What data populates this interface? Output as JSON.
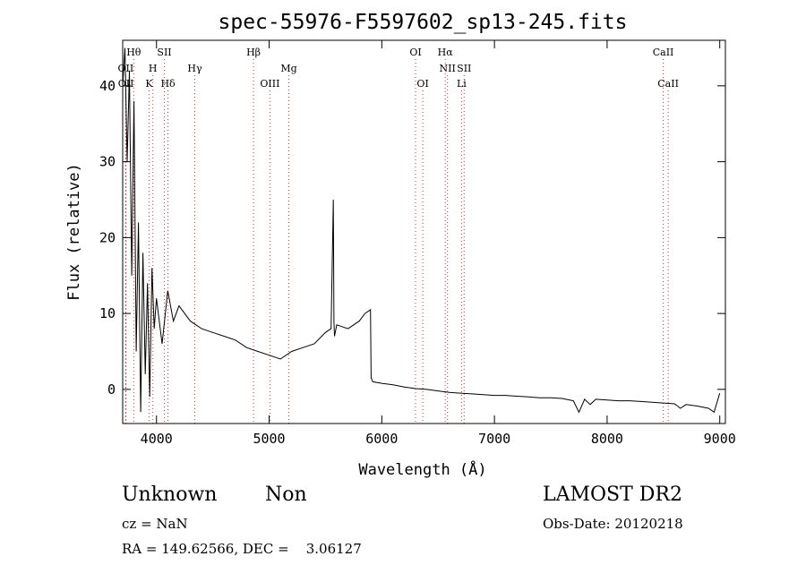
{
  "chart_data": {
    "type": "line",
    "title": "spec-55976-F5597602_sp13-245.fits",
    "xlabel": "Wavelength (Å)",
    "ylabel": "Flux (relative)",
    "xlim": [
      3700,
      9050
    ],
    "ylim": [
      -4.5,
      46
    ],
    "x_ticks": [
      4000,
      5000,
      6000,
      7000,
      8000,
      9000
    ],
    "y_ticks": [
      0,
      10,
      20,
      30,
      40
    ],
    "x_tick_labels": [
      "4000",
      "5000",
      "6000",
      "7000",
      "8000",
      "9000"
    ],
    "y_tick_labels": [
      "0",
      "10",
      "20",
      "30",
      "40"
    ],
    "x": [
      3700,
      3720,
      3740,
      3760,
      3780,
      3800,
      3820,
      3840,
      3860,
      3880,
      3900,
      3920,
      3940,
      3960,
      3980,
      4000,
      4050,
      4100,
      4150,
      4200,
      4300,
      4400,
      4500,
      4600,
      4700,
      4800,
      4900,
      5000,
      5100,
      5200,
      5300,
      5400,
      5500,
      5550,
      5570,
      5575,
      5580,
      5600,
      5700,
      5800,
      5850,
      5900,
      5905,
      5920,
      6000,
      6100,
      6200,
      6300,
      6400,
      6500,
      6600,
      6700,
      6800,
      6900,
      7000,
      7100,
      7200,
      7300,
      7400,
      7500,
      7600,
      7700,
      7750,
      7800,
      7850,
      7900,
      8000,
      8100,
      8200,
      8300,
      8400,
      8500,
      8600,
      8650,
      8700,
      8800,
      8900,
      8950,
      9000
    ],
    "y": [
      40,
      45,
      30,
      42,
      15,
      38,
      5,
      22,
      -3,
      18,
      2,
      14,
      -1,
      16,
      8,
      12,
      6,
      13,
      9,
      11,
      9,
      8,
      7.5,
      7,
      6.5,
      5.5,
      5,
      4.5,
      4,
      5,
      5.5,
      6,
      7.5,
      8,
      25,
      9,
      7,
      8.5,
      8,
      9,
      10,
      10.5,
      1.5,
      1,
      0.8,
      0.6,
      0.3,
      0.1,
      0,
      -0.2,
      -0.4,
      -0.5,
      -0.6,
      -0.7,
      -0.8,
      -0.8,
      -0.9,
      -1,
      -1.1,
      -1.1,
      -1.2,
      -1.5,
      -3,
      -1.3,
      -2,
      -1.3,
      -1.4,
      -1.5,
      -1.5,
      -1.6,
      -1.7,
      -1.8,
      -1.9,
      -2.5,
      -2,
      -2.2,
      -2.5,
      -3,
      -0.5
    ],
    "lines": [
      {
        "label": "Hθ",
        "wave": 3798,
        "row": 0
      },
      {
        "label": "OII",
        "wave": 3727,
        "row": 1
      },
      {
        "label": "OII",
        "wave": 3729,
        "row": 2
      },
      {
        "label": "SII",
        "wave": 4070,
        "row": 0
      },
      {
        "label": "H",
        "wave": 3968,
        "row": 1
      },
      {
        "label": "K",
        "wave": 3934,
        "row": 2
      },
      {
        "label": "Hδ",
        "wave": 4102,
        "row": 2
      },
      {
        "label": "Hγ",
        "wave": 4340,
        "row": 1
      },
      {
        "label": "Hβ",
        "wave": 4861,
        "row": 0
      },
      {
        "label": "OIII",
        "wave": 5007,
        "row": 2
      },
      {
        "label": "Mg",
        "wave": 5175,
        "row": 1
      },
      {
        "label": "OI",
        "wave": 6300,
        "row": 0
      },
      {
        "label": "OI",
        "wave": 6364,
        "row": 2
      },
      {
        "label": "Hα",
        "wave": 6563,
        "row": 0
      },
      {
        "label": "NII",
        "wave": 6583,
        "row": 1
      },
      {
        "label": "Li",
        "wave": 6708,
        "row": 2
      },
      {
        "label": "SII",
        "wave": 6731,
        "row": 1
      },
      {
        "label": "CaII",
        "wave": 8498,
        "row": 0
      },
      {
        "label": "CaII",
        "wave": 8542,
        "row": 2
      }
    ]
  },
  "info": {
    "class_label": "Unknown",
    "subclass_label": "Non",
    "survey": "LAMOST DR2",
    "redshift": "cz = NaN",
    "obs_date": "Obs-Date: 20120218",
    "coords": "RA = 149.62566, DEC =    3.06127"
  },
  "colors": {
    "spectrum": "#000000",
    "line_markers": "#cc3333",
    "background": "#ffffff"
  }
}
